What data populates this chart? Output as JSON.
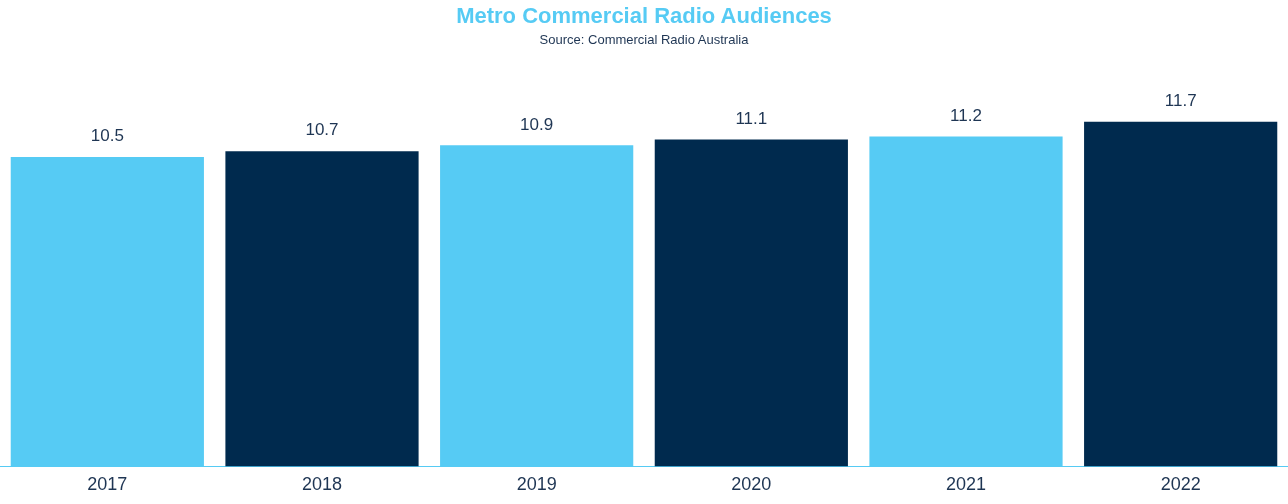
{
  "chart_data": {
    "type": "bar",
    "title": "Metro Commercial Radio Audiences",
    "annotations": [
      "Source: Commercial Radio Australia"
    ],
    "categories": [
      "2017",
      "2018",
      "2019",
      "2020",
      "2021",
      "2022"
    ],
    "values": [
      10.5,
      10.7,
      10.9,
      11.1,
      11.2,
      11.7
    ],
    "colors": [
      "#56cbf4",
      "#002a4e",
      "#56cbf4",
      "#002a4e",
      "#56cbf4",
      "#002a4e"
    ],
    "data_labels": true
  }
}
